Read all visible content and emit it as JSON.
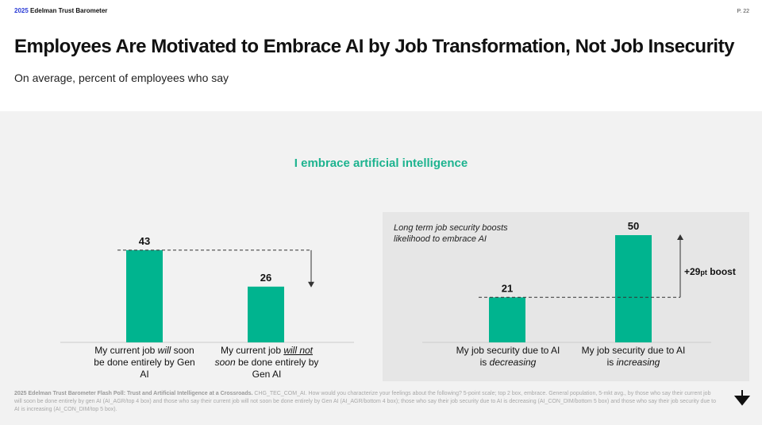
{
  "header": {
    "brand_year": "2025",
    "brand_name": "Edelman Trust Barometer",
    "page": "P. 22"
  },
  "title": "Employees Are Motivated to Embrace AI by Job Transformation, Not Job Insecurity",
  "subtitle": "On average, percent of employees who say",
  "chart_data": {
    "type": "bar",
    "title": "I embrace artificial intelligence",
    "categories": [
      "My current job will soon be done entirely by Gen AI",
      "My current job will not soon be done entirely by Gen AI",
      "My job security due to AI is decreasing",
      "My job security due to AI is increasing"
    ],
    "values": [
      43,
      26,
      21,
      50
    ],
    "data_labels": [
      "43",
      "26",
      "21",
      "50"
    ],
    "color": "#00b48f",
    "annotation_note": "Long term job security boosts likelihood to embrace AI",
    "annotation_boost": {
      "prefix": "+29",
      "unit": "pt",
      "suffix": " boost"
    }
  },
  "labels": {
    "c1": {
      "a": "My current job ",
      "b": "will",
      "c": " soon be done entirely by Gen AI"
    },
    "c2": {
      "a": "My current job ",
      "b": "will not",
      "c": "soon",
      "d": " be done entirely by Gen AI"
    },
    "c3": {
      "a": "My job security due to AI is ",
      "b": "decreasing"
    },
    "c4": {
      "a": "My job security due to AI is ",
      "b": "increasing"
    }
  },
  "footnote": {
    "bold": "2025 Edelman Trust Barometer Flash Poll: Trust and Artificial Intelligence at a Crossroads.",
    "text": " CHG_TEC_COM_AI. How would you characterize your feelings about the following? 5-point scale; top 2 box, embrace. General population, 5-mkt avg., by those who say their current job will soon be done entirely by gen AI (AI_AGR/top 4 box) and those who say their current job will not soon be done entirely by Gen AI (AI_AGR/bottom 4 box); those who say their job security due to AI is decreasing (AI_CON_DIM/bottom 5 box) and those who say their job security due to AI is increasing (AI_CON_DIM/top 5 box)."
  }
}
